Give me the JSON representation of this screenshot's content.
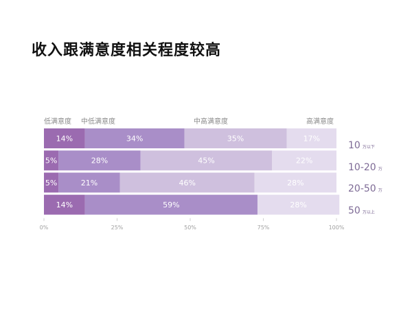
{
  "title": "收入跟满意度相关程度较高",
  "chart_data": {
    "type": "bar",
    "stacked": "100%",
    "orientation": "horizontal",
    "segments": [
      "低满意度",
      "中低满意度",
      "中高满意度",
      "高满意度"
    ],
    "rows": [
      {
        "label_num": "10",
        "label_unit": "万以下",
        "values": [
          14,
          34,
          35,
          17
        ]
      },
      {
        "label_num": "10-20",
        "label_unit": "万",
        "values": [
          5,
          28,
          45,
          22
        ]
      },
      {
        "label_num": "20-50",
        "label_unit": "万",
        "values": [
          5,
          21,
          46,
          28
        ]
      },
      {
        "label_num": "50",
        "label_unit": "万以上",
        "values": [
          14,
          59,
          0,
          28
        ]
      }
    ],
    "value_suffix": "%",
    "xlim": [
      0,
      100
    ],
    "xticks": [
      "0%",
      "25%",
      "50%",
      "75%",
      "100%"
    ],
    "colors": [
      "#9b6bb0",
      "#a98ec8",
      "#cfc0de",
      "#e4dcee"
    ]
  }
}
